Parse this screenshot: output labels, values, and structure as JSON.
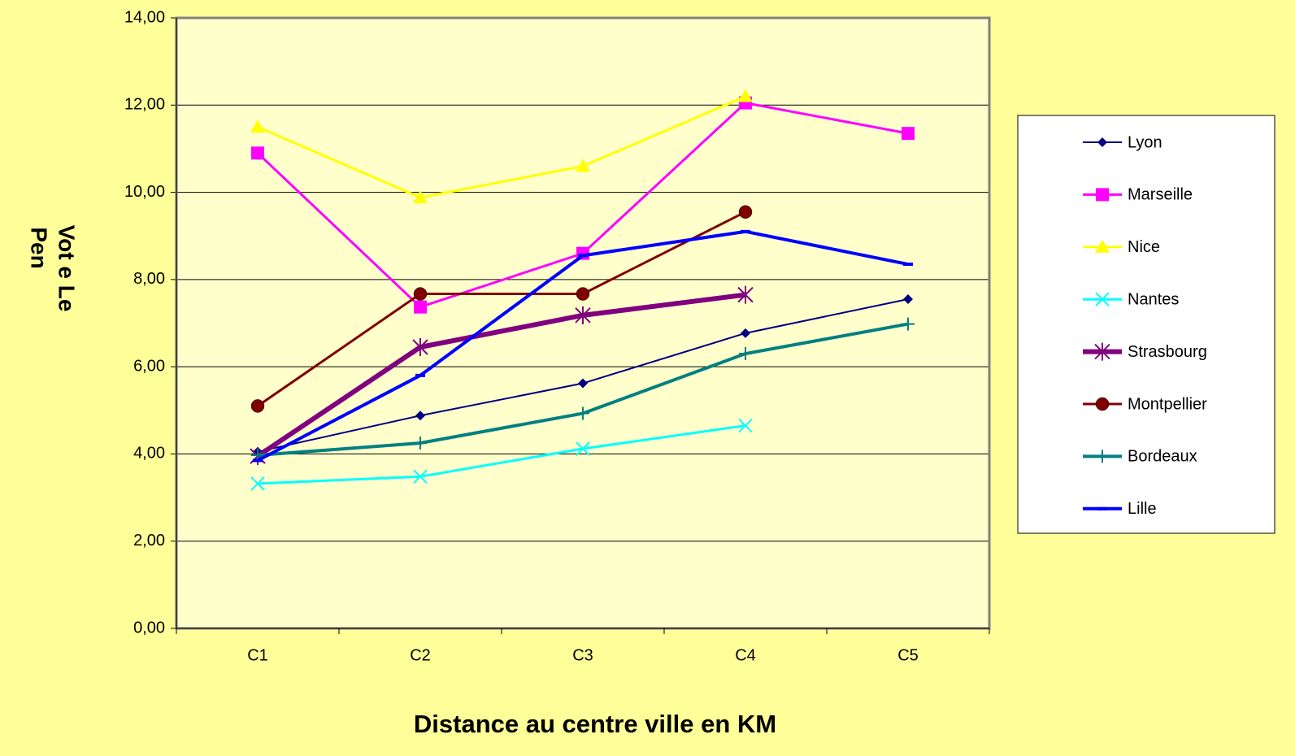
{
  "chart_data": {
    "type": "line",
    "xlabel": "Distance au centre ville en KM",
    "ylabel": [
      "Vot e Le",
      "Pen"
    ],
    "categories": [
      "C1",
      "C2",
      "C3",
      "C4",
      "C5"
    ],
    "ylim": [
      0,
      14
    ],
    "yticks": [
      {
        "value": 0,
        "label": "0,00"
      },
      {
        "value": 2,
        "label": "2,00"
      },
      {
        "value": 4,
        "label": "4,00"
      },
      {
        "value": 6,
        "label": "6,00"
      },
      {
        "value": 8,
        "label": "8,00"
      },
      {
        "value": 10,
        "label": "10,00"
      },
      {
        "value": 12,
        "label": "12,00"
      },
      {
        "value": 14,
        "label": "14,00"
      }
    ],
    "grid": true,
    "legend": "right",
    "series": [
      {
        "name": "Lyon",
        "color": "#000080",
        "marker": "diamond",
        "width": 2,
        "values": [
          4.05,
          4.88,
          5.62,
          6.77,
          7.55
        ]
      },
      {
        "name": "Marseille",
        "color": "#FF00FF",
        "marker": "square",
        "width": 3,
        "values": [
          10.9,
          7.37,
          8.6,
          12.05,
          11.35
        ]
      },
      {
        "name": "Nice",
        "color": "#FFFF00",
        "marker": "triangle",
        "width": 3,
        "values": [
          11.5,
          9.88,
          10.6,
          12.2,
          null
        ]
      },
      {
        "name": "Nantes",
        "color": "#00FFFF",
        "marker": "x",
        "width": 3,
        "values": [
          3.32,
          3.48,
          4.12,
          4.65,
          null
        ]
      },
      {
        "name": "Strasbourg",
        "color": "#800080",
        "marker": "star",
        "width": 6,
        "values": [
          3.95,
          6.45,
          7.18,
          7.65,
          null
        ]
      },
      {
        "name": "Montpellier",
        "color": "#800000",
        "marker": "circle",
        "width": 3,
        "values": [
          5.1,
          7.67,
          7.67,
          9.55,
          null
        ]
      },
      {
        "name": "Bordeaux",
        "color": "#008080",
        "marker": "plus",
        "width": 4,
        "values": [
          3.97,
          4.25,
          4.93,
          6.3,
          6.98
        ]
      },
      {
        "name": "Lille",
        "color": "#0000FF",
        "marker": "dash",
        "width": 4,
        "values": [
          3.85,
          5.8,
          8.55,
          9.1,
          8.35
        ]
      }
    ]
  }
}
